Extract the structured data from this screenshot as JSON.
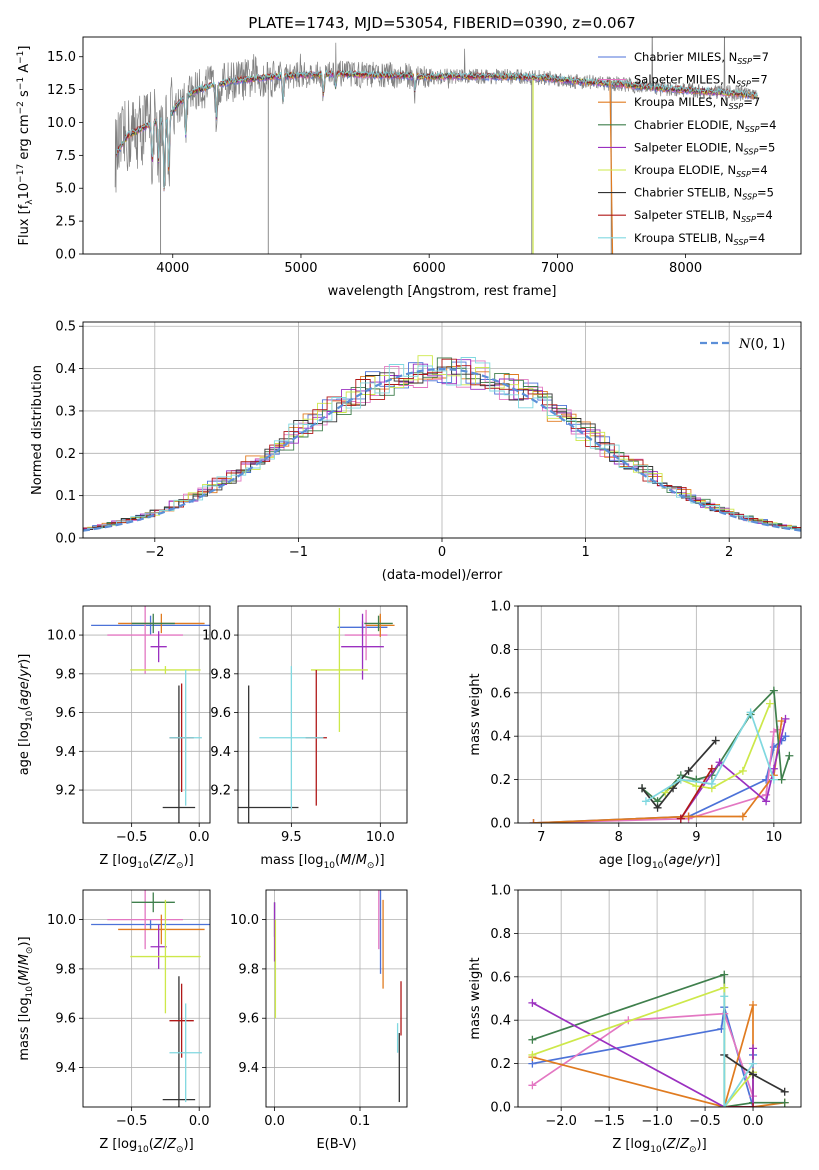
{
  "chart_data": [
    {
      "id": "spectrum",
      "type": "line",
      "title": "PLATE=1743, MJD=53054, FIBERID=0390, z=0.067",
      "xlabel": "wavelength [Angstrom, rest frame]",
      "ylabel": "Flux [f_λ10^-17 erg cm^-2 s^-1 A^-1]",
      "xlim": [
        3300,
        8900
      ],
      "ylim": [
        0,
        16.5
      ],
      "xticks": [
        "4000",
        "5000",
        "6000",
        "7000",
        "8000"
      ],
      "xtick_values": [
        4000,
        5000,
        6000,
        7000,
        8000
      ],
      "yticks": [
        "0.0",
        "2.5",
        "5.0",
        "7.5",
        "10.0",
        "12.5",
        "15.0"
      ],
      "ytick_values": [
        0,
        2.5,
        5,
        7.5,
        10,
        12.5,
        15
      ],
      "continuum": {
        "x": [
          3550,
          3650,
          3750,
          3850,
          3950,
          4050,
          4150,
          4300,
          4500,
          4800,
          5000,
          5300,
          5600,
          6000,
          6300,
          6600,
          6900,
          7200,
          7500,
          7800,
          8100,
          8400,
          8560
        ],
        "y": [
          7.5,
          9.0,
          9.5,
          10.0,
          10.2,
          11.5,
          12.3,
          12.8,
          13.2,
          13.5,
          13.6,
          13.7,
          13.6,
          13.5,
          13.5,
          13.5,
          13.4,
          13.1,
          12.9,
          12.6,
          12.4,
          12.2,
          12.0
        ]
      },
      "legend": [
        {
          "label": "Chabrier MILES, N_SSP=7",
          "color": "#4c72d8"
        },
        {
          "label": "Salpeter MILES, N_SSP=7",
          "color": "#e377c2"
        },
        {
          "label": "Kroupa MILES, N_SSP=7",
          "color": "#e07b20"
        },
        {
          "label": "Chabrier ELODIE, N_SSP=4",
          "color": "#3f7f4c"
        },
        {
          "label": "Salpeter ELODIE, N_SSP=5",
          "color": "#9b30c0"
        },
        {
          "label": "Kroupa ELODIE, N_SSP=4",
          "color": "#cde84a"
        },
        {
          "label": "Chabrier STELIB, N_SSP=5",
          "color": "#333333"
        },
        {
          "label": "Salpeter STELIB, N_SSP=4",
          "color": "#b01818"
        },
        {
          "label": "Kroupa STELIB, N_SSP=4",
          "color": "#80d8e0"
        }
      ],
      "legend_text": [
        {
          "main": "Chabrier MILES, N",
          "sub": "SSP",
          "tail": "=7"
        },
        {
          "main": "Salpeter MILES, N",
          "sub": "SSP",
          "tail": "=7"
        },
        {
          "main": "Kroupa MILES, N",
          "sub": "SSP",
          "tail": "=7"
        },
        {
          "main": "Chabrier ELODIE, N",
          "sub": "SSP",
          "tail": "=4"
        },
        {
          "main": "Salpeter ELODIE, N",
          "sub": "SSP",
          "tail": "=5"
        },
        {
          "main": "Kroupa ELODIE, N",
          "sub": "SSP",
          "tail": "=4"
        },
        {
          "main": "Chabrier STELIB, N",
          "sub": "SSP",
          "tail": "=5"
        },
        {
          "main": "Salpeter STELIB, N",
          "sub": "SSP",
          "tail": "=4"
        },
        {
          "main": "Kroupa STELIB, N",
          "sub": "SSP",
          "tail": "=4"
        }
      ],
      "legend_placement": "top-right",
      "grid": false
    },
    {
      "id": "residuals",
      "type": "histogram",
      "xlabel": "(data-model)/error",
      "ylabel": "Normed distribution",
      "xlim": [
        -2.5,
        2.5
      ],
      "ylim": [
        0,
        0.51
      ],
      "xticks": [
        "−2",
        "−1",
        "0",
        "1",
        "2"
      ],
      "xtick_values": [
        -2,
        -1,
        0,
        1,
        2
      ],
      "yticks": [
        "0.0",
        "0.1",
        "0.2",
        "0.3",
        "0.4",
        "0.5"
      ],
      "ytick_values": [
        0,
        0.1,
        0.2,
        0.3,
        0.4,
        0.5
      ],
      "legend": [
        {
          "label": "N(0,1)",
          "color": "#5b8fd8",
          "style": "dashed"
        }
      ],
      "legend_placement": "top-right",
      "grid": true
    },
    {
      "id": "age_vs_Z",
      "type": "errorbar",
      "xlabel": "Z [log10(Z/Z☉)]",
      "ylabel": "age [log10(age/yr)]",
      "xlim": [
        -0.86,
        0.08
      ],
      "ylim": [
        9.03,
        10.15
      ],
      "xticks": [
        "−0.5",
        "0.0"
      ],
      "xtick_values": [
        -0.5,
        0.0
      ],
      "yticks": [
        "9.2",
        "9.4",
        "9.6",
        "9.8",
        "10.0"
      ],
      "ytick_values": [
        9.2,
        9.4,
        9.6,
        9.8,
        10.0
      ],
      "points": [
        {
          "x": -0.36,
          "xerr": 0.44,
          "y": 10.05,
          "yerr": 0.05,
          "color": "#4c72d8"
        },
        {
          "x": -0.4,
          "xerr": 0.28,
          "y": 10.0,
          "yerr": 0.2,
          "color": "#e377c2"
        },
        {
          "x": -0.28,
          "xerr": 0.32,
          "y": 10.06,
          "yerr": 0.05,
          "color": "#e07b20"
        },
        {
          "x": -0.34,
          "xerr": 0.16,
          "y": 10.06,
          "yerr": 0.05,
          "color": "#3f7f4c"
        },
        {
          "x": -0.3,
          "xerr": 0.06,
          "y": 9.94,
          "yerr": 0.08,
          "color": "#9b30c0"
        },
        {
          "x": -0.25,
          "xerr": 0.26,
          "y": 9.82,
          "yerr": 0.02,
          "color": "#cde84a"
        },
        {
          "x": -0.15,
          "xerr": 0.12,
          "y": 9.11,
          "yerr": 0.63,
          "color": "#333333"
        },
        {
          "x": -0.13,
          "xerr": 0.09,
          "y": 9.47,
          "yerr": 0.28,
          "color": "#b01818"
        },
        {
          "x": -0.1,
          "xerr": 0.12,
          "y": 9.47,
          "yerr": 0.35,
          "color": "#80d8e0"
        }
      ],
      "grid": true
    },
    {
      "id": "age_vs_mass",
      "type": "errorbar",
      "xlabel": "mass [log10(M/M☉)]",
      "ylabel": "",
      "xlim": [
        9.2,
        10.15
      ],
      "ylim": [
        9.03,
        10.15
      ],
      "xticks": [
        "9.5",
        "10.0"
      ],
      "xtick_values": [
        9.5,
        10.0
      ],
      "yticks": [
        "9.2",
        "9.4",
        "9.6",
        "9.8",
        "10.0"
      ],
      "ytick_values": [
        9.2,
        9.4,
        9.6,
        9.8,
        10.0
      ],
      "points": [
        {
          "x": 9.9,
          "xerr": 0.14,
          "y": 10.04,
          "yerr": 0.03,
          "color": "#4c72d8"
        },
        {
          "x": 9.92,
          "xerr": 0.12,
          "y": 10.0,
          "yerr": 0.13,
          "color": "#e377c2"
        },
        {
          "x": 10.0,
          "xerr": 0.08,
          "y": 10.05,
          "yerr": 0.06,
          "color": "#e07b20"
        },
        {
          "x": 9.99,
          "xerr": 0.08,
          "y": 10.06,
          "yerr": 0.04,
          "color": "#3f7f4c"
        },
        {
          "x": 9.9,
          "xerr": 0.12,
          "y": 9.94,
          "yerr": 0.17,
          "color": "#9b30c0"
        },
        {
          "x": 9.77,
          "xerr": 0.16,
          "y": 9.82,
          "yerr": 0.32,
          "color": "#cde84a"
        },
        {
          "x": 9.26,
          "xerr": 0.28,
          "y": 9.11,
          "yerr": 0.63,
          "color": "#333333"
        },
        {
          "x": 9.64,
          "xerr": 0.06,
          "y": 9.47,
          "yerr": 0.35,
          "color": "#b01818"
        },
        {
          "x": 9.5,
          "xerr": 0.18,
          "y": 9.47,
          "yerr": 0.37,
          "color": "#80d8e0"
        }
      ],
      "grid": true
    },
    {
      "id": "massweight_vs_age",
      "type": "line",
      "xlabel": "age [log10(age/yr)]",
      "ylabel": "mass weight",
      "xlim": [
        6.7,
        10.35
      ],
      "ylim": [
        0,
        1.0
      ],
      "xticks": [
        "7",
        "8",
        "9",
        "10"
      ],
      "xtick_values": [
        7,
        8,
        9,
        10
      ],
      "yticks": [
        "0.0",
        "0.2",
        "0.4",
        "0.6",
        "0.8",
        "1.0"
      ],
      "ytick_values": [
        0,
        0.2,
        0.4,
        0.6,
        0.8,
        1.0
      ],
      "series": [
        {
          "color": "#4c72d8",
          "x": [
            6.9,
            8.9,
            9.9,
            10.0,
            10.1,
            10.15
          ],
          "y": [
            0.0,
            0.03,
            0.2,
            0.35,
            0.38,
            0.4
          ]
        },
        {
          "color": "#e377c2",
          "x": [
            6.9,
            8.9,
            9.9,
            10.0,
            10.05
          ],
          "y": [
            0.0,
            0.02,
            0.13,
            0.42,
            0.43
          ]
        },
        {
          "color": "#e07b20",
          "x": [
            6.9,
            8.9,
            9.6,
            10.0,
            10.1
          ],
          "y": [
            0.0,
            0.03,
            0.03,
            0.22,
            0.47
          ]
        },
        {
          "color": "#3f7f4c",
          "x": [
            8.3,
            8.5,
            8.8,
            9.0,
            9.2,
            9.7,
            10.0,
            10.1,
            10.2
          ],
          "y": [
            0.16,
            0.1,
            0.22,
            0.2,
            0.22,
            0.5,
            0.61,
            0.2,
            0.31
          ]
        },
        {
          "color": "#9b30c0",
          "x": [
            8.8,
            9.3,
            9.9,
            10.0,
            10.15
          ],
          "y": [
            0.02,
            0.28,
            0.1,
            0.25,
            0.48
          ]
        },
        {
          "color": "#cde84a",
          "x": [
            8.6,
            8.8,
            9.0,
            9.2,
            9.6,
            9.95
          ],
          "y": [
            0.14,
            0.2,
            0.17,
            0.16,
            0.24,
            0.55
          ]
        },
        {
          "color": "#333333",
          "x": [
            8.3,
            8.5,
            8.7,
            8.9,
            9.25
          ],
          "y": [
            0.16,
            0.07,
            0.16,
            0.24,
            0.38
          ]
        },
        {
          "color": "#b01818",
          "x": [
            8.8,
            9.2
          ],
          "y": [
            0.02,
            0.25
          ]
        },
        {
          "color": "#80d8e0",
          "x": [
            8.35,
            8.8,
            9.2,
            9.7,
            10.0
          ],
          "y": [
            0.1,
            0.2,
            0.18,
            0.51,
            0.2
          ]
        }
      ],
      "grid": true
    },
    {
      "id": "mass_vs_Z",
      "type": "errorbar",
      "xlabel": "Z [log10(Z/Z☉)]",
      "ylabel": "mass [log10(M/M☉)]",
      "xlim": [
        -0.86,
        0.08
      ],
      "ylim": [
        9.24,
        10.12
      ],
      "xticks": [
        "−0.5",
        "0.0"
      ],
      "xtick_values": [
        -0.5,
        0.0
      ],
      "yticks": [
        "9.4",
        "9.6",
        "9.8",
        "10.0"
      ],
      "ytick_values": [
        9.4,
        9.6,
        9.8,
        10.0
      ],
      "points": [
        {
          "x": -0.36,
          "xerr": 0.44,
          "y": 9.98,
          "yerr": 0.02,
          "color": "#4c72d8"
        },
        {
          "x": -0.4,
          "xerr": 0.28,
          "y": 10.0,
          "yerr": 0.12,
          "color": "#e377c2"
        },
        {
          "x": -0.28,
          "xerr": 0.32,
          "y": 9.96,
          "yerr": 0.06,
          "color": "#e07b20"
        },
        {
          "x": -0.34,
          "xerr": 0.16,
          "y": 10.07,
          "yerr": 0.04,
          "color": "#3f7f4c"
        },
        {
          "x": -0.3,
          "xerr": 0.06,
          "y": 9.89,
          "yerr": 0.09,
          "color": "#9b30c0"
        },
        {
          "x": -0.25,
          "xerr": 0.26,
          "y": 9.85,
          "yerr": 0.23,
          "color": "#cde84a"
        },
        {
          "x": -0.15,
          "xerr": 0.12,
          "y": 9.27,
          "yerr": 0.5,
          "color": "#333333"
        },
        {
          "x": -0.13,
          "xerr": 0.09,
          "y": 9.59,
          "yerr": 0.15,
          "color": "#b01818"
        },
        {
          "x": -0.1,
          "xerr": 0.12,
          "y": 9.46,
          "yerr": 0.2,
          "color": "#80d8e0"
        }
      ],
      "grid": true
    },
    {
      "id": "mass_vs_EBV",
      "type": "errorbar",
      "xlabel": "E(B-V)",
      "ylabel": "",
      "xlim": [
        -0.01,
        0.155
      ],
      "ylim": [
        9.24,
        10.12
      ],
      "xticks": [
        "0.0",
        "0.1"
      ],
      "xtick_values": [
        0.0,
        0.1
      ],
      "yticks": [
        "9.4",
        "9.6",
        "9.8",
        "10.0"
      ],
      "ytick_values": [
        9.4,
        9.6,
        9.8,
        10.0
      ],
      "points": [
        {
          "x": 0.124,
          "xerr": 0,
          "y": 9.98,
          "yerr": 0.2,
          "color": "#4c72d8"
        },
        {
          "x": 0.122,
          "xerr": 0,
          "y": 10.0,
          "yerr": 0.12,
          "color": "#e377c2"
        },
        {
          "x": 0.127,
          "xerr": 0,
          "y": 9.9,
          "yerr": 0.18,
          "color": "#e07b20"
        },
        {
          "x": 0.0,
          "xerr": 0,
          "y": 10.0,
          "yerr": 0.07,
          "color": "#3f7f4c"
        },
        {
          "x": 0.0,
          "xerr": 0,
          "y": 9.95,
          "yerr": 0.12,
          "color": "#9b30c0"
        },
        {
          "x": 0.001,
          "xerr": 0,
          "y": 9.8,
          "yerr": 0.2,
          "color": "#cde84a"
        },
        {
          "x": 0.146,
          "xerr": 0,
          "y": 9.4,
          "yerr": 0.14,
          "color": "#333333"
        },
        {
          "x": 0.148,
          "xerr": 0,
          "y": 9.64,
          "yerr": 0.11,
          "color": "#b01818"
        },
        {
          "x": 0.144,
          "xerr": 0,
          "y": 9.52,
          "yerr": 0.06,
          "color": "#80d8e0"
        }
      ],
      "grid": true
    },
    {
      "id": "massweight_vs_Z",
      "type": "line",
      "xlabel": "Z [log10(Z/Z☉)]",
      "ylabel": "mass weight",
      "xlim": [
        -2.45,
        0.5
      ],
      "ylim": [
        0,
        1.0
      ],
      "xticks": [
        "−2.0",
        "−1.5",
        "−1.0",
        "−0.5",
        "0.0"
      ],
      "xtick_values": [
        -2.0,
        -1.5,
        -1.0,
        -0.5,
        0.0
      ],
      "yticks": [
        "0.0",
        "0.2",
        "0.4",
        "0.6",
        "0.8",
        "1.0"
      ],
      "ytick_values": [
        0,
        0.2,
        0.4,
        0.6,
        0.8,
        1.0
      ],
      "series": [
        {
          "color": "#4c72d8",
          "x": [
            -2.3,
            -0.33,
            -0.3,
            0.0,
            0.0
          ],
          "y": [
            0.2,
            0.36,
            0.46,
            0.0,
            0.24
          ]
        },
        {
          "color": "#e377c2",
          "x": [
            -2.3,
            -1.3,
            -0.3,
            0.0
          ],
          "y": [
            0.1,
            0.4,
            0.43,
            0.05
          ]
        },
        {
          "color": "#e07b20",
          "x": [
            -2.3,
            -0.3,
            0.0,
            0.0,
            0.33
          ],
          "y": [
            0.23,
            0.0,
            0.47,
            0.0,
            0.02
          ]
        },
        {
          "color": "#3f7f4c",
          "x": [
            -2.3,
            -0.3,
            -0.3,
            0.0,
            0.33
          ],
          "y": [
            0.31,
            0.61,
            0.0,
            0.02,
            0.02
          ]
        },
        {
          "color": "#9b30c0",
          "x": [
            -2.3,
            -0.3,
            0.0,
            0.0
          ],
          "y": [
            0.48,
            0.0,
            0.0,
            0.27
          ]
        },
        {
          "color": "#cde84a",
          "x": [
            -2.3,
            -0.3,
            -0.3,
            0.0
          ],
          "y": [
            0.24,
            0.55,
            0.0,
            0.16
          ]
        },
        {
          "color": "#333333",
          "x": [
            -0.3,
            0.0,
            0.33
          ],
          "y": [
            0.24,
            0.15,
            0.07
          ]
        },
        {
          "color": "#b01818",
          "x": [
            -0.3,
            0.0
          ],
          "y": [
            0.0,
            0.0
          ]
        },
        {
          "color": "#80d8e0",
          "x": [
            -0.3,
            -0.3,
            0.0
          ],
          "y": [
            0.51,
            0.0,
            0.2
          ]
        }
      ],
      "grid": true
    }
  ]
}
